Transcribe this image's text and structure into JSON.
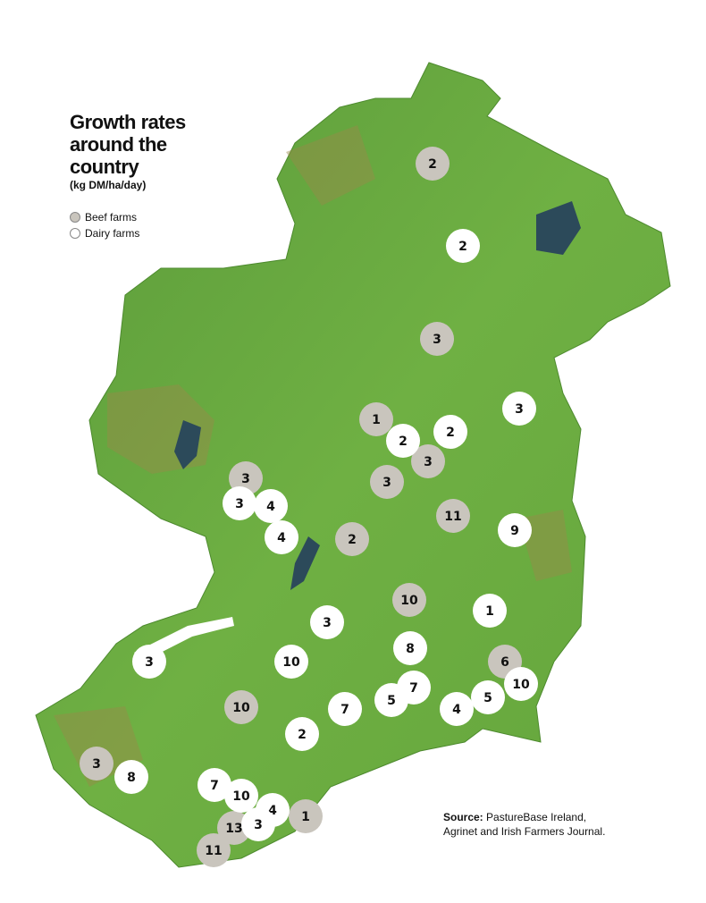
{
  "title": "Growth rates around the country",
  "subtitle": "(kg DM/ha/day)",
  "farms": [
    {
      "label": "Beef farms",
      "color": "#c9c5bd",
      "values": [
        2,
        3,
        1,
        3,
        3,
        3,
        11,
        2,
        10,
        6,
        10,
        3,
        13,
        1,
        11
      ]
    },
    {
      "label": "Dairy farms",
      "color": "#ffffff",
      "values": [
        2,
        3,
        2,
        2,
        3,
        4,
        4,
        9,
        1,
        3,
        8,
        3,
        10,
        7,
        5,
        7,
        4,
        5,
        10,
        2,
        8,
        7,
        10,
        4,
        3
      ]
    }
  ],
  "source": {
    "label": "Source:",
    "text": "PastureBase Ireland, Agrinet and Irish Farmers Journal."
  }
}
